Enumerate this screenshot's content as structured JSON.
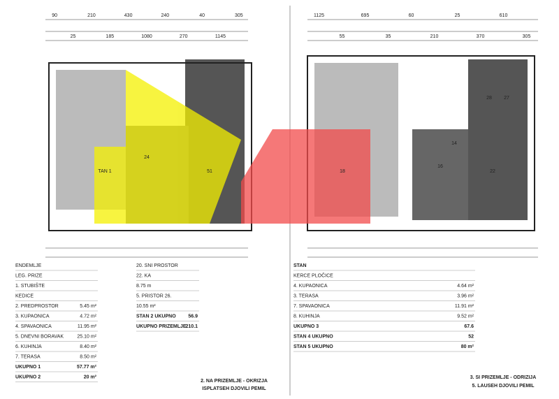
{
  "left_plan": {
    "dimensions": [
      "90",
      "25",
      "210",
      "185",
      "430",
      "1080",
      "240",
      "270",
      "40",
      "1145",
      "305"
    ],
    "rooms": [
      "24",
      "TAN 1",
      "51"
    ]
  },
  "right_plan": {
    "dimensions": [
      "1125",
      "55",
      "695",
      "35",
      "60",
      "210",
      "25",
      "370",
      "610",
      "305"
    ],
    "rooms": [
      "18",
      "16",
      "14",
      "22",
      "28",
      "27"
    ]
  },
  "tables": [
    {
      "rows": [
        [
          "ENDEMLJE",
          ""
        ],
        [
          "LEG. PRIZE",
          ""
        ],
        [
          "1. STUBIŠTE",
          ""
        ],
        [
          "KEDICE",
          ""
        ],
        [
          "2. PREDPROSTOR",
          "5.45 m²"
        ],
        [
          "3. KUPAONICA",
          "4.72 m²"
        ],
        [
          "4. SPAVAONICA",
          "11.95 m²"
        ],
        [
          "5. DNEVNI BORAVAK",
          "25.10 m²"
        ],
        [
          "6. KUHINJA",
          "8.40 m²"
        ],
        [
          "7. TERASA",
          "8.50 m²"
        ],
        [
          "UKUPNO 1",
          "57.77 m²"
        ],
        [
          "UKUPNO 2",
          "20 m²"
        ]
      ]
    },
    {
      "rows": [
        [
          "20. SNI PROSTOR",
          ""
        ],
        [
          "22. KA",
          ""
        ],
        [
          "8.75 m",
          ""
        ],
        [
          "5. PRISTOR 26.",
          ""
        ],
        [
          "10.55 m²",
          ""
        ],
        [
          "STAN 2 UKUPNO",
          "56.9"
        ],
        [
          "UKUPNO PRIZEMLJE",
          "210.1"
        ]
      ]
    },
    {
      "rows": [
        [
          "STAN",
          ""
        ],
        [
          "KERCE PLOČICE",
          ""
        ],
        [
          "4. KUPAONICA",
          "4.64 m²"
        ],
        [
          "3. TERASA",
          "3.96 m²"
        ],
        [
          "7. SPAVAONICA",
          "11.91 m²"
        ],
        [
          "8. KUHINJA",
          "9.52 m²"
        ],
        [
          "UKUPNO 3",
          "67.6"
        ],
        [
          "STAN 4 UKUPNO",
          "52"
        ],
        [
          "STAN 5 UKUPNO",
          "80 m²"
        ]
      ]
    }
  ],
  "captions": [
    "2. NA PRIZEMLJE - OKRIZJA",
    "ISPLATSEH DJOVILI PEMIL",
    "3. SI PRIZEMLJE - ODRIZIJA",
    "5. LAUSEH DJOVILI PEMIL"
  ]
}
